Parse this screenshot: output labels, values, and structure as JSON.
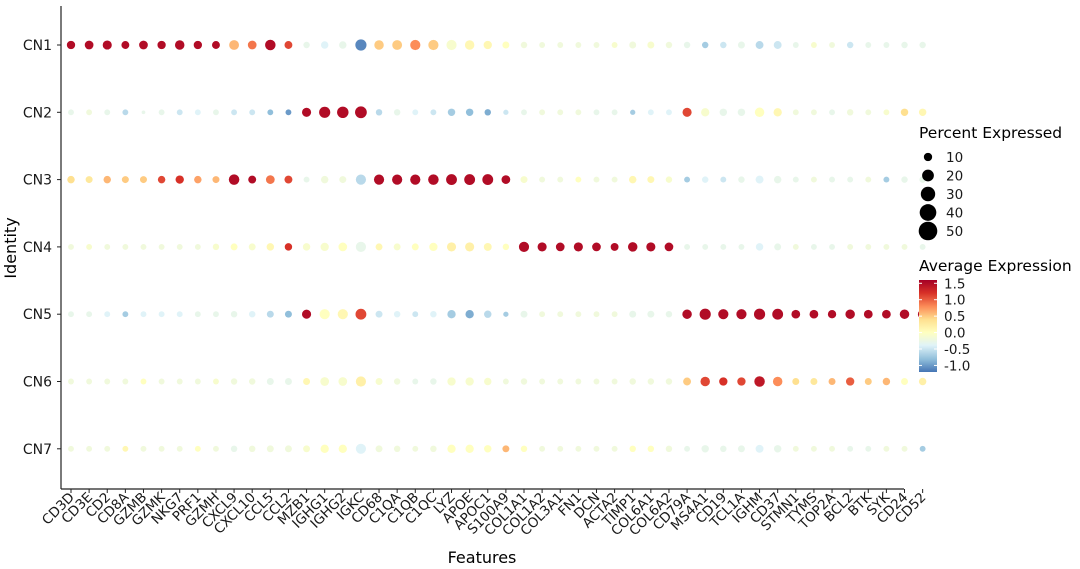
{
  "chart_data": {
    "type": "dotplot",
    "xlabel": "Features",
    "ylabel": "Identity",
    "features": [
      "CD3D",
      "CD3E",
      "CD2",
      "CD8A",
      "GZMB",
      "GZMK",
      "NKG7",
      "PRF1",
      "GZMH",
      "CXCL9",
      "CXCL10",
      "CCL5",
      "CCL2",
      "MZB1",
      "IGHG1",
      "IGHG2",
      "IGKC",
      "CD68",
      "C1QA",
      "C1QB",
      "C1QC",
      "LYZ",
      "APOE",
      "APOC1",
      "S100A9",
      "COL1A1",
      "COL1A2",
      "COL3A1",
      "FN1",
      "DCN",
      "ACTA2",
      "TIMP1",
      "COL6A1",
      "COL6A2",
      "CD79A",
      "MS4A1",
      "CD19",
      "TCL1A",
      "IGHM",
      "CD37",
      "STMN1",
      "TYMS",
      "TOP2A",
      "BCL2",
      "BTK",
      "SYK",
      "CD24",
      "CD52"
    ],
    "identities": [
      "CN1",
      "CN2",
      "CN3",
      "CN4",
      "CN5",
      "CN6",
      "CN7"
    ],
    "size_legend": {
      "title": "Percent Expressed",
      "breaks": [
        10,
        20,
        30,
        40,
        50
      ]
    },
    "color_legend": {
      "title": "Average Expression",
      "breaks": [
        1.5,
        1.0,
        0.5,
        0.0,
        -0.5,
        -1.0
      ],
      "tick_labels": [
        "1.5",
        "1.0",
        "0.5",
        "0.0",
        "-0.5",
        "-1.0"
      ],
      "range": [
        -1.2,
        1.6
      ],
      "colors": [
        "#4575b4",
        "#91bfdb",
        "#e0f3f8",
        "#ffffbf",
        "#fee090",
        "#fc8d59",
        "#d73027",
        "#a50026"
      ]
    },
    "rows": {
      "CN1": {
        "pct": [
          10,
          11,
          12,
          9,
          11,
          10,
          13,
          10,
          9,
          14,
          11,
          16,
          9,
          6,
          8,
          8,
          18,
          13,
          14,
          15,
          15,
          15,
          13,
          10,
          7,
          6,
          5,
          5,
          5,
          5,
          5,
          7,
          7,
          6,
          6,
          6,
          6,
          7,
          9,
          9,
          5,
          5,
          5,
          6,
          5,
          5,
          6,
          6
        ],
        "avg": [
          1.5,
          1.5,
          1.5,
          1.5,
          1.5,
          1.5,
          1.5,
          1.5,
          1.5,
          0.6,
          0.9,
          1.5,
          1.1,
          -0.3,
          -0.4,
          -0.3,
          -1.1,
          0.5,
          0.5,
          0.8,
          0.5,
          -0.1,
          0.1,
          0.1,
          0.0,
          -0.2,
          -0.2,
          -0.2,
          -0.2,
          -0.2,
          -0.1,
          -0.2,
          -0.1,
          -0.2,
          -0.3,
          -0.7,
          -0.5,
          -0.3,
          -0.6,
          -0.5,
          -0.3,
          -0.1,
          -0.2,
          -0.5,
          -0.3,
          -0.3,
          -0.3,
          -0.3
        ]
      },
      "CN2": {
        "pct": [
          5,
          5,
          5,
          5,
          2,
          5,
          5,
          5,
          5,
          5,
          5,
          5,
          5,
          12,
          18,
          19,
          20,
          6,
          6,
          5,
          5,
          8,
          8,
          6,
          4,
          5,
          5,
          5,
          5,
          5,
          5,
          4,
          5,
          5,
          12,
          10,
          8,
          8,
          13,
          10,
          5,
          5,
          5,
          6,
          5,
          5,
          8,
          8
        ],
        "avg": [
          -0.3,
          -0.2,
          -0.3,
          -0.6,
          -0.3,
          -0.3,
          -0.5,
          -0.4,
          -0.3,
          -0.5,
          -0.5,
          -0.8,
          -1.0,
          1.5,
          1.5,
          1.5,
          1.5,
          -0.6,
          -0.3,
          -0.4,
          -0.5,
          -0.7,
          -0.8,
          -0.9,
          -0.5,
          -0.3,
          -0.2,
          -0.2,
          -0.2,
          -0.3,
          -0.3,
          -0.7,
          -0.4,
          -0.4,
          1.1,
          -0.1,
          -0.3,
          -0.3,
          0.0,
          0.1,
          -0.2,
          -0.2,
          -0.3,
          -0.2,
          -0.2,
          -0.1,
          0.4,
          0.1
        ]
      },
      "CN3": {
        "pct": [
          8,
          7,
          8,
          7,
          7,
          8,
          10,
          8,
          7,
          16,
          9,
          11,
          9,
          5,
          8,
          7,
          15,
          15,
          15,
          15,
          16,
          17,
          17,
          17,
          11,
          7,
          5,
          5,
          5,
          5,
          5,
          8,
          7,
          6,
          5,
          6,
          5,
          6,
          9,
          8,
          5,
          5,
          5,
          5,
          5,
          5,
          6,
          6
        ],
        "avg": [
          0.4,
          0.3,
          0.6,
          0.5,
          0.5,
          1.1,
          1.2,
          0.7,
          0.6,
          1.5,
          1.5,
          0.9,
          1.1,
          -0.3,
          -0.2,
          -0.2,
          -0.6,
          1.5,
          1.5,
          1.5,
          1.5,
          1.5,
          1.5,
          1.5,
          1.5,
          -0.1,
          -0.2,
          -0.2,
          0.0,
          -0.2,
          -0.2,
          0.1,
          0.1,
          -0.1,
          -0.7,
          -0.4,
          -0.5,
          -0.3,
          -0.4,
          -0.3,
          -0.3,
          -0.2,
          -0.3,
          -0.3,
          -0.2,
          -0.7,
          -0.3,
          -0.3
        ]
      },
      "CN4": {
        "pct": [
          5,
          5,
          5,
          5,
          5,
          5,
          5,
          5,
          6,
          7,
          7,
          8,
          8,
          8,
          10,
          11,
          15,
          7,
          7,
          7,
          10,
          12,
          12,
          9,
          6,
          15,
          12,
          11,
          12,
          11,
          9,
          13,
          12,
          11,
          5,
          5,
          5,
          5,
          8,
          7,
          5,
          5,
          5,
          5,
          5,
          5,
          5,
          5
        ],
        "avg": [
          -0.2,
          -0.1,
          -0.2,
          -0.2,
          -0.2,
          -0.2,
          -0.2,
          -0.2,
          -0.1,
          0.0,
          -0.1,
          0.1,
          1.2,
          -0.1,
          -0.1,
          0.0,
          -0.3,
          0.1,
          -0.1,
          0.0,
          0.0,
          0.2,
          0.2,
          0.1,
          0.0,
          1.5,
          1.5,
          1.5,
          1.5,
          1.5,
          1.5,
          1.5,
          1.5,
          1.5,
          -0.3,
          -0.3,
          -0.3,
          -0.3,
          -0.4,
          -0.3,
          -0.2,
          -0.3,
          -0.3,
          -0.2,
          -0.2,
          -0.2,
          -0.2,
          -0.3
        ]
      },
      "CN5": {
        "pct": [
          5,
          5,
          5,
          5,
          5,
          5,
          5,
          5,
          5,
          6,
          6,
          7,
          7,
          12,
          15,
          15,
          17,
          7,
          6,
          5,
          6,
          10,
          10,
          8,
          4,
          7,
          5,
          5,
          5,
          5,
          5,
          7,
          7,
          6,
          13,
          18,
          15,
          15,
          18,
          17,
          11,
          11,
          10,
          13,
          11,
          11,
          13,
          13
        ],
        "avg": [
          -0.3,
          -0.3,
          -0.4,
          -0.7,
          -0.4,
          -0.4,
          -0.4,
          -0.3,
          -0.3,
          -0.3,
          -0.4,
          -0.6,
          -0.8,
          1.5,
          0.0,
          0.1,
          1.1,
          -0.5,
          -0.4,
          -0.5,
          -0.4,
          -0.7,
          -0.9,
          -0.6,
          -0.7,
          -0.3,
          -0.2,
          -0.2,
          -0.2,
          -0.2,
          -0.2,
          -0.3,
          -0.3,
          -0.3,
          1.5,
          1.5,
          1.5,
          1.5,
          1.5,
          1.5,
          1.5,
          1.5,
          1.5,
          1.5,
          1.5,
          1.5,
          1.5,
          1.5
        ]
      },
      "CN6": {
        "pct": [
          5,
          5,
          5,
          5,
          5,
          5,
          5,
          5,
          5,
          6,
          6,
          7,
          7,
          7,
          11,
          11,
          15,
          7,
          6,
          5,
          6,
          10,
          10,
          8,
          5,
          6,
          5,
          5,
          5,
          5,
          5,
          6,
          6,
          6,
          9,
          13,
          10,
          10,
          16,
          13,
          7,
          7,
          7,
          10,
          7,
          8,
          7,
          8
        ],
        "avg": [
          -0.2,
          -0.2,
          -0.2,
          -0.2,
          0.0,
          -0.2,
          -0.2,
          -0.2,
          -0.1,
          -0.2,
          -0.2,
          -0.3,
          -0.3,
          0.1,
          -0.1,
          -0.1,
          0.2,
          -0.1,
          -0.2,
          -0.3,
          -0.3,
          -0.1,
          -0.1,
          -0.1,
          -0.2,
          -0.2,
          -0.2,
          -0.2,
          -0.2,
          -0.2,
          -0.2,
          -0.2,
          -0.2,
          -0.2,
          0.5,
          1.1,
          1.2,
          1.1,
          1.4,
          0.8,
          0.4,
          0.3,
          0.6,
          1.0,
          0.5,
          0.6,
          0.0,
          0.2
        ]
      },
      "CN7": {
        "pct": [
          5,
          5,
          5,
          5,
          5,
          5,
          5,
          5,
          5,
          6,
          6,
          7,
          7,
          7,
          10,
          10,
          15,
          7,
          6,
          5,
          6,
          10,
          10,
          8,
          7,
          6,
          5,
          5,
          5,
          5,
          5,
          6,
          6,
          6,
          5,
          8,
          6,
          7,
          9,
          8,
          5,
          5,
          5,
          5,
          5,
          5,
          5,
          5
        ],
        "avg": [
          -0.2,
          -0.2,
          -0.2,
          0.1,
          -0.2,
          -0.2,
          -0.2,
          0.0,
          -0.2,
          -0.3,
          -0.2,
          -0.2,
          -0.2,
          -0.1,
          0.0,
          0.0,
          -0.4,
          -0.2,
          -0.2,
          -0.2,
          -0.2,
          0.0,
          0.0,
          0.0,
          0.6,
          0.0,
          -0.2,
          -0.2,
          -0.2,
          -0.2,
          -0.2,
          0.0,
          0.0,
          -0.2,
          -0.3,
          -0.3,
          -0.3,
          -0.3,
          -0.4,
          -0.3,
          -0.2,
          -0.2,
          -0.2,
          -0.3,
          -0.3,
          -0.2,
          -0.2,
          -0.7
        ]
      }
    }
  }
}
